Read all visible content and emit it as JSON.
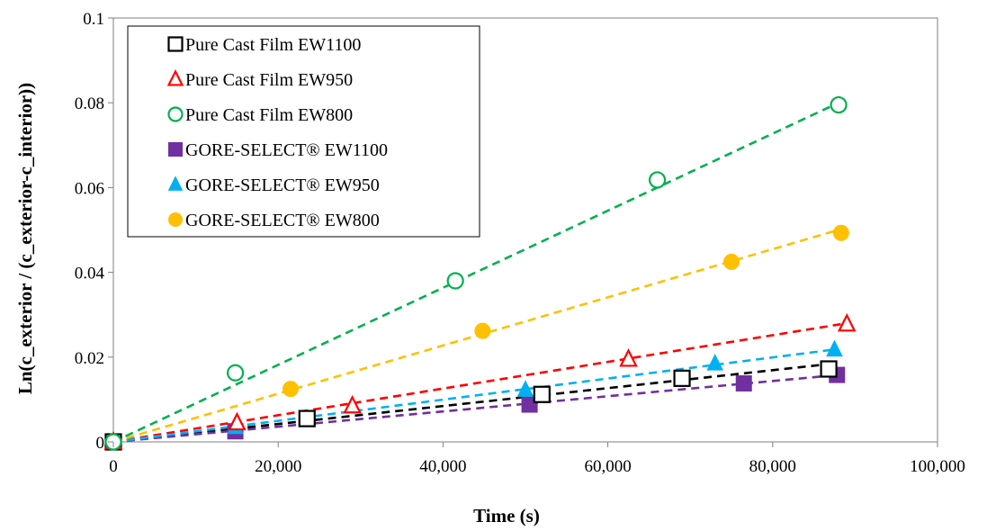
{
  "chart_data": {
    "type": "scatter",
    "title": "",
    "xlabel": "Time (s)",
    "ylabel": "Ln(c_exterior / (c_exterior-c_interior))",
    "xlim": [
      0,
      100000
    ],
    "ylim": [
      0,
      0.1
    ],
    "x_ticks": [
      "0",
      "20,000",
      "40,000",
      "60,000",
      "80,000",
      "100,000"
    ],
    "y_ticks": [
      "0",
      "0.02",
      "0.04",
      "0.06",
      "0.08",
      "0.1"
    ],
    "grid": false,
    "legend_position": "top-left",
    "trendlines": "dashed linear fits through origin",
    "series": [
      {
        "name": "Pure Cast Film EW1100",
        "marker": "open-square",
        "color": "#000000",
        "points": [
          [
            0,
            0
          ],
          [
            23500,
            0.0055
          ],
          [
            52000,
            0.0112
          ],
          [
            69000,
            0.015
          ],
          [
            86800,
            0.0172
          ]
        ],
        "fit_end": [
          87500,
          0.0185
        ]
      },
      {
        "name": "Pure Cast Film EW950",
        "marker": "open-triangle",
        "color": "#ff0000",
        "points": [
          [
            0,
            0
          ],
          [
            15000,
            0.0045
          ],
          [
            29000,
            0.0085
          ],
          [
            62500,
            0.0195
          ],
          [
            89000,
            0.0278
          ]
        ],
        "fit_end": [
          89000,
          0.028
        ]
      },
      {
        "name": "Pure Cast Film EW800",
        "marker": "open-circle",
        "color": "#00b050",
        "points": [
          [
            0,
            0
          ],
          [
            14800,
            0.0163
          ],
          [
            41500,
            0.038
          ],
          [
            66000,
            0.0618
          ],
          [
            88000,
            0.0795
          ]
        ],
        "fit_end": [
          88000,
          0.08
        ]
      },
      {
        "name": "GORE-SELECT® EW1100",
        "marker": "filled-square",
        "color": "#7030a0",
        "points": [
          [
            0,
            0
          ],
          [
            14800,
            0.0025
          ],
          [
            50500,
            0.0088
          ],
          [
            76500,
            0.0138
          ],
          [
            87800,
            0.0158
          ]
        ],
        "fit_end": [
          88000,
          0.0158
        ]
      },
      {
        "name": "GORE-SELECT® EW950",
        "marker": "filled-triangle",
        "color": "#00b0f0",
        "points": [
          [
            0,
            0
          ],
          [
            14800,
            0.0035
          ],
          [
            50000,
            0.0123
          ],
          [
            73000,
            0.0185
          ],
          [
            87500,
            0.0218
          ]
        ],
        "fit_end": [
          87500,
          0.0218
        ]
      },
      {
        "name": "GORE-SELECT® EW800",
        "marker": "filled-circle",
        "color": "#ffc000",
        "points": [
          [
            0,
            0
          ],
          [
            21500,
            0.0125
          ],
          [
            44800,
            0.0262
          ],
          [
            75000,
            0.0425
          ],
          [
            88300,
            0.0493
          ]
        ],
        "fit_end": [
          88300,
          0.0502
        ]
      }
    ]
  }
}
